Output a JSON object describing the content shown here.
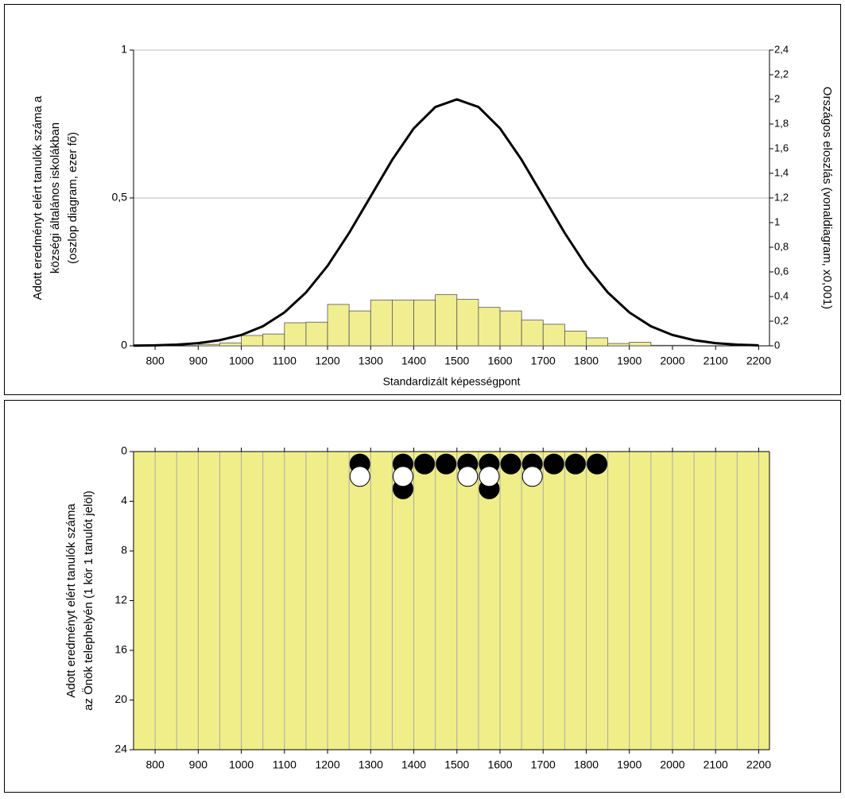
{
  "chart_data": [
    {
      "type": "histogram",
      "ylabel": [
        "Adott eredményt elért tanulók száma a",
        "községi általános iskolákban",
        "(oszlop diagram, ezer fő)"
      ],
      "y2label": "Országos eloszlás (vonaldiagram, x0,001)",
      "xlabel": "Standardizált képességpont",
      "xlim": [
        750,
        2225
      ],
      "xticks": [
        800,
        900,
        1000,
        1100,
        1200,
        1300,
        1400,
        1500,
        1600,
        1700,
        1800,
        1900,
        2000,
        2100,
        2200
      ],
      "ylim": [
        0,
        1
      ],
      "yticks": [
        0,
        {
          "value": 0.5,
          "label": "0,5"
        },
        1
      ],
      "y2lim": [
        0,
        2.4
      ],
      "y2ticks": [
        0,
        {
          "value": 0.2,
          "label": "0,2"
        },
        {
          "value": 0.4,
          "label": "0,4"
        },
        {
          "value": 0.6,
          "label": "0,6"
        },
        {
          "value": 0.8,
          "label": "0,8"
        },
        1,
        {
          "value": 1.2,
          "label": "1,2"
        },
        {
          "value": 1.4,
          "label": "1,4"
        },
        {
          "value": 1.6,
          "label": "1,6"
        },
        {
          "value": 1.8,
          "label": "1,8"
        },
        2,
        {
          "value": 2.2,
          "label": "2,2"
        },
        {
          "value": 2.4,
          "label": "2,4"
        }
      ],
      "grid": true,
      "color": "#f0ee90",
      "bins": [
        900,
        950,
        1000,
        1050,
        1100,
        1150,
        1200,
        1250,
        1300,
        1350,
        1400,
        1450,
        1500,
        1550,
        1600,
        1650,
        1700,
        1750,
        1800,
        1850,
        1900,
        1950,
        2000,
        2050
      ],
      "values": [
        0.005,
        0.01,
        0.035,
        0.04,
        0.078,
        0.08,
        0.14,
        0.118,
        0.155,
        0.155,
        0.155,
        0.173,
        0.157,
        0.13,
        0.118,
        0.087,
        0.073,
        0.05,
        0.027,
        0.008,
        0.012,
        0.002,
        0.002
      ],
      "series": [
        {
          "color": "#000000",
          "axis": "y2",
          "x": [
            750,
            800,
            850,
            900,
            950,
            1000,
            1050,
            1100,
            1150,
            1200,
            1250,
            1300,
            1350,
            1400,
            1450,
            1500,
            1550,
            1600,
            1650,
            1700,
            1750,
            1800,
            1850,
            1900,
            1950,
            2000,
            2050,
            2100,
            2150,
            2200
          ],
          "values": [
            0.002,
            0.004,
            0.01,
            0.022,
            0.046,
            0.088,
            0.159,
            0.271,
            0.433,
            0.649,
            0.916,
            1.213,
            1.51,
            1.765,
            1.938,
            2.0,
            1.938,
            1.765,
            1.51,
            1.213,
            0.916,
            0.649,
            0.433,
            0.271,
            0.159,
            0.088,
            0.046,
            0.022,
            0.01,
            0.004
          ]
        }
      ]
    },
    {
      "type": "scatter",
      "ylabel": [
        "Adott eredményt elért tanulók száma",
        "az Önök telephelyén (1 kör 1 tanulót jelöl)"
      ],
      "xlim": [
        750,
        2225
      ],
      "xticks": [
        800,
        900,
        1000,
        1100,
        1200,
        1300,
        1400,
        1500,
        1600,
        1700,
        1800,
        1900,
        2000,
        2100,
        2200
      ],
      "ylim": [
        0,
        24
      ],
      "yticks": [
        0,
        4,
        8,
        12,
        16,
        20,
        24
      ],
      "inverted_y": true,
      "grid": true,
      "background": "#f0ee88",
      "series": [
        {
          "color": "#000000",
          "x": [
            1275,
            1375,
            1375,
            1425,
            1475,
            1525,
            1575,
            1575,
            1625,
            1675,
            1725,
            1775,
            1825
          ],
          "values": [
            1,
            1,
            3,
            1,
            1,
            1,
            1,
            3,
            1,
            1,
            1,
            1,
            1
          ]
        },
        {
          "color": "#ffffff",
          "x": [
            1275,
            1375,
            1525,
            1575,
            1675
          ],
          "values": [
            2,
            2,
            2,
            2,
            2
          ]
        }
      ]
    }
  ]
}
